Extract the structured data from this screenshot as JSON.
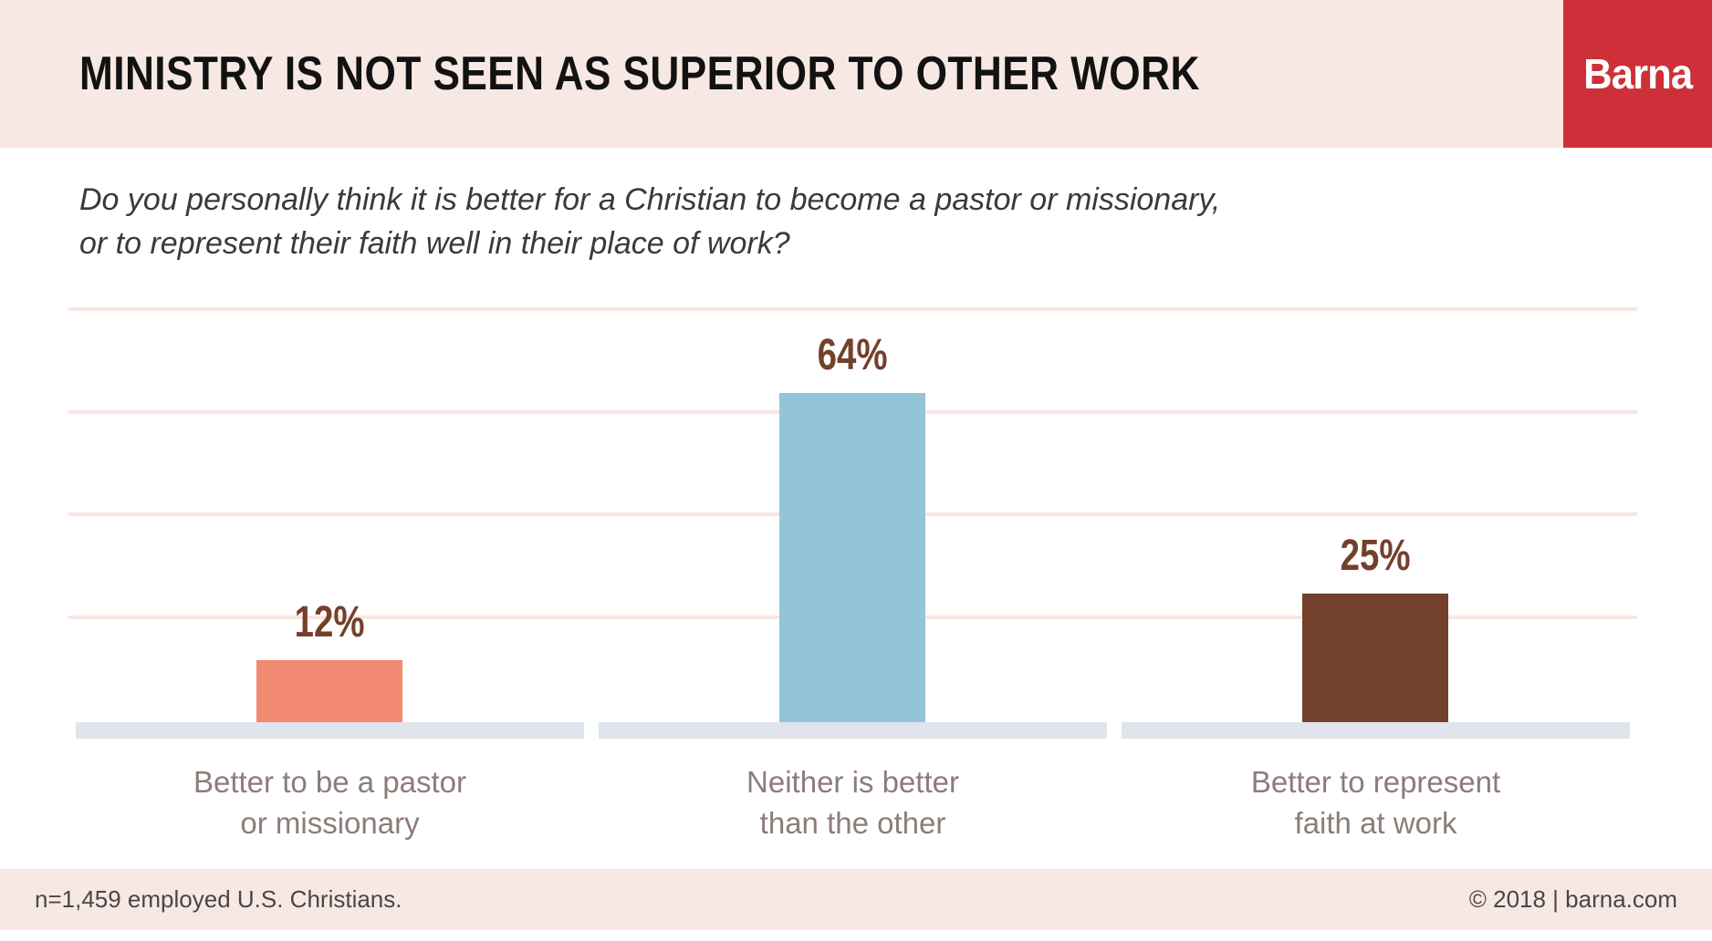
{
  "header": {
    "title": "MINISTRY IS NOT SEEN AS SUPERIOR TO OTHER WORK",
    "logo_text": "Barna",
    "header_bg_color": "#F8E8E3",
    "logo_bg_color": "#CD3038"
  },
  "question": {
    "line1": "Do you personally think it is better for a Christian to become a pastor or missionary,",
    "line2": "or to represent their faith well in their place of work?"
  },
  "chart_data": {
    "type": "bar",
    "title": "MINISTRY IS NOT SEEN AS SUPERIOR TO OTHER WORK",
    "subtitle": "Do you personally think it is better for a Christian to become a pastor or missionary, or to represent their faith well in their place of work?",
    "categories": [
      "Better to be a pastor or missionary",
      "Neither is better than the other",
      "Better to represent faith at work"
    ],
    "categories_lines": [
      [
        "Better to be a pastor",
        "or missionary"
      ],
      [
        "Neither is better",
        "than the other"
      ],
      [
        "Better to represent",
        "faith at work"
      ]
    ],
    "values": [
      12,
      64,
      25
    ],
    "value_labels": [
      "12%",
      "64%",
      "25%"
    ],
    "unit": "%",
    "bar_colors": [
      "#F18A70",
      "#92C5DA",
      "#73402B"
    ],
    "value_label_color": "#73402B",
    "gridline_values": [
      20,
      40,
      60,
      80
    ],
    "gridline_color": "#F9E6E0",
    "baseline_color": "#E0E4EC",
    "ylim": [
      0,
      80
    ],
    "grid": "horizontal",
    "legend": "none",
    "axis_tick_labels": "none"
  },
  "footer": {
    "sample_note": "n=1,459 employed U.S. Christians.",
    "copyright": "© 2018 | barna.com",
    "footer_bg_color": "#F8E8E3"
  }
}
